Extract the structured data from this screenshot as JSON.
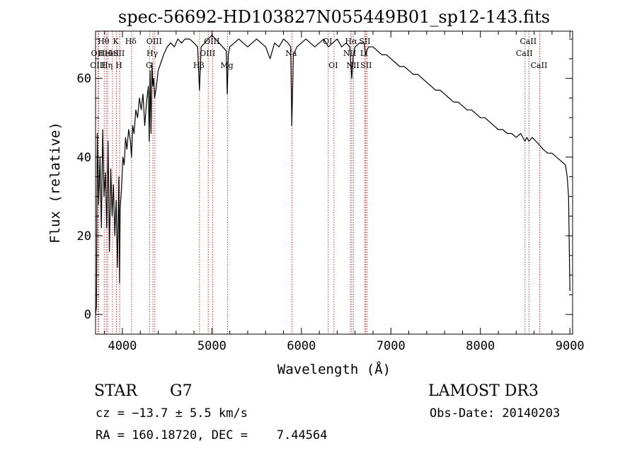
{
  "chart_data": {
    "type": "line",
    "title": "spec-56692-HD103827N055449B01_sp12-143.fits",
    "xlabel": "Wavelength (Å)",
    "ylabel": "Flux (relative)",
    "xlim": [
      3700,
      9030
    ],
    "ylim": [
      -5,
      72
    ],
    "x_ticks": [
      4000,
      5000,
      6000,
      7000,
      8000,
      9000
    ],
    "y_ticks": [
      0,
      20,
      40,
      60
    ],
    "grid": false,
    "line_color": "#000000",
    "marker_color": "#cc3333",
    "series": [
      {
        "x": [
          3700,
          3710,
          3720,
          3735,
          3750,
          3765,
          3780,
          3795,
          3810,
          3825,
          3840,
          3855,
          3870,
          3885,
          3900,
          3915,
          3930,
          3945,
          3960,
          3968,
          3975,
          3990,
          4005,
          4020,
          4035,
          4050,
          4070,
          4090,
          4102,
          4115,
          4130,
          4150,
          4170,
          4190,
          4210,
          4230,
          4250,
          4270,
          4290,
          4300,
          4310,
          4320,
          4330,
          4340,
          4350,
          4360,
          4380,
          4400,
          4430,
          4460,
          4500,
          4540,
          4580,
          4620,
          4660,
          4700,
          4750,
          4800,
          4840,
          4861,
          4880,
          4920,
          4960,
          5000,
          5040,
          5080,
          5120,
          5160,
          5172,
          5183,
          5200,
          5250,
          5300,
          5350,
          5400,
          5450,
          5500,
          5550,
          5600,
          5650,
          5700,
          5750,
          5800,
          5850,
          5880,
          5893,
          5910,
          5950,
          6000,
          6050,
          6100,
          6150,
          6200,
          6250,
          6300,
          6350,
          6400,
          6450,
          6500,
          6540,
          6563,
          6580,
          6600,
          6650,
          6700,
          6717,
          6731,
          6750,
          6800,
          6850,
          6900,
          6950,
          7000,
          7050,
          7100,
          7150,
          7200,
          7250,
          7300,
          7350,
          7400,
          7450,
          7500,
          7550,
          7600,
          7650,
          7700,
          7750,
          7800,
          7850,
          7900,
          7950,
          8000,
          8050,
          8100,
          8150,
          8200,
          8250,
          8300,
          8350,
          8400,
          8450,
          8498,
          8520,
          8542,
          8580,
          8620,
          8662,
          8700,
          8750,
          8800,
          8850,
          8900,
          8950,
          8970,
          8985,
          9000
        ],
        "y": [
          0,
          2,
          46,
          28,
          40,
          22,
          47,
          30,
          36,
          22,
          44,
          16,
          37,
          25,
          33,
          20,
          29,
          12,
          35,
          8,
          27,
          32,
          40,
          38,
          45,
          42,
          47,
          44,
          40,
          48,
          46,
          52,
          50,
          55,
          52,
          56,
          48,
          54,
          58,
          44,
          62,
          46,
          64,
          58,
          60,
          55,
          58,
          62,
          64,
          66,
          68,
          69,
          68,
          70,
          69,
          70,
          70,
          69,
          68,
          57,
          68,
          69,
          70,
          71,
          70,
          69,
          68,
          67,
          56,
          66,
          68,
          69,
          70,
          69,
          68,
          69,
          70,
          69,
          68,
          65,
          69,
          68,
          70,
          69,
          68,
          48,
          66,
          68,
          69,
          70,
          69,
          68,
          69,
          70,
          68,
          69,
          70,
          68,
          69,
          68,
          60,
          66,
          68,
          69,
          69,
          66,
          67,
          68,
          68,
          67,
          66,
          66,
          65,
          64,
          63,
          63,
          62,
          61,
          61,
          60,
          59,
          58,
          57,
          57,
          56,
          55,
          54,
          54,
          53,
          52,
          52,
          51,
          50,
          50,
          49,
          48,
          47,
          47,
          46,
          46,
          45,
          46,
          44,
          45,
          44,
          45,
          44,
          43,
          42,
          41,
          41,
          40,
          39,
          38,
          35,
          30,
          6
        ]
      }
    ],
    "line_markers": [
      {
        "w": 3727,
        "label": "OII",
        "row": 2
      },
      {
        "w": 3734,
        "label": "OIII",
        "row": 3
      },
      {
        "w": 3797,
        "label": "Hθ",
        "row": 1
      },
      {
        "w": 3820,
        "label": "HeI",
        "row": 2
      },
      {
        "w": 3835,
        "label": "Hη",
        "row": 3
      },
      {
        "w": 3889,
        "label": "HeI",
        "row": 2
      },
      {
        "w": 3934,
        "label": "K",
        "row": 1
      },
      {
        "w": 3969,
        "label": "H",
        "row": 3
      },
      {
        "w": 3970,
        "label": "SII",
        "row": 2
      },
      {
        "w": 4102,
        "label": "Hδ",
        "row": 1
      },
      {
        "w": 4304,
        "label": "G",
        "row": 3
      },
      {
        "w": 4341,
        "label": "Hγ",
        "row": 2
      },
      {
        "w": 4363,
        "label": "OIII",
        "row": 1
      },
      {
        "w": 4861,
        "label": "Hβ",
        "row": 3
      },
      {
        "w": 4959,
        "label": "OIII",
        "row": 2
      },
      {
        "w": 5007,
        "label": "OIII",
        "row": 1
      },
      {
        "w": 5175,
        "label": "Mg",
        "row": 3
      },
      {
        "w": 5893,
        "label": "Na",
        "row": 2
      },
      {
        "w": 6300,
        "label": "OI",
        "row": 1
      },
      {
        "w": 6364,
        "label": "OI",
        "row": 3
      },
      {
        "w": 6548,
        "label": "NII",
        "row": 2
      },
      {
        "w": 6563,
        "label": "Hα",
        "row": 1
      },
      {
        "w": 6583,
        "label": "NII",
        "row": 3
      },
      {
        "w": 6707,
        "label": "Li",
        "row": 2
      },
      {
        "w": 6716,
        "label": "SII",
        "row": 1
      },
      {
        "w": 6731,
        "label": "SII",
        "row": 3
      },
      {
        "w": 8498,
        "label": "CaII",
        "row": 2
      },
      {
        "w": 8542,
        "label": "CaII",
        "row": 1
      },
      {
        "w": 8662,
        "label": "CaII",
        "row": 3
      }
    ]
  },
  "info": {
    "object_type": "STAR",
    "subclass": "G7",
    "survey": "LAMOST DR3",
    "cz": "cz = −13.7 ± 5.5 km/s",
    "obs_date": "Obs-Date: 20140203",
    "coords": "RA = 160.18720, DEC =    7.44564"
  }
}
